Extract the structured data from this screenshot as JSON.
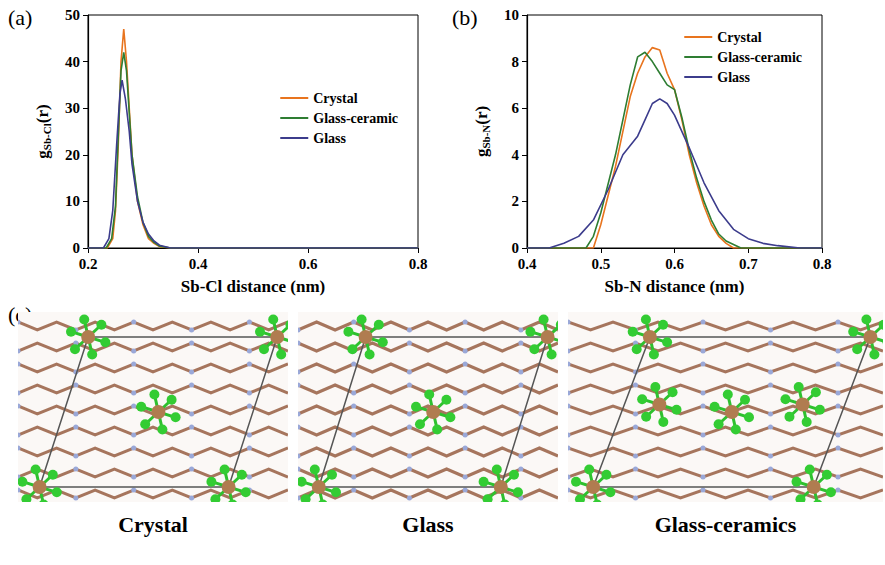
{
  "chart_data": [
    {
      "panel": "(a)",
      "type": "line",
      "xlabel": "Sb-Cl distance (nm)",
      "ylabel": [
        "g",
        "Sb-Cl",
        "(r)"
      ],
      "xlim": [
        0.2,
        0.8
      ],
      "xticks": [
        0.2,
        0.4,
        0.6,
        0.8
      ],
      "ylim": [
        0,
        50
      ],
      "yticks": [
        0,
        10,
        20,
        30,
        40,
        50
      ],
      "legend": "center right",
      "series": [
        {
          "name": "Crystal",
          "color": "#e8741e",
          "x": [
            0.2,
            0.235,
            0.245,
            0.25,
            0.255,
            0.26,
            0.265,
            0.27,
            0.275,
            0.28,
            0.29,
            0.3,
            0.31,
            0.32,
            0.33,
            0.35,
            0.8
          ],
          "values": [
            0,
            0,
            2,
            8,
            22,
            40,
            47,
            40,
            30,
            20,
            10,
            5,
            2,
            1,
            0.3,
            0,
            0
          ]
        },
        {
          "name": "Glass-ceramic",
          "color": "#2e7d32",
          "x": [
            0.2,
            0.233,
            0.243,
            0.25,
            0.255,
            0.26,
            0.265,
            0.27,
            0.275,
            0.28,
            0.29,
            0.3,
            0.31,
            0.32,
            0.33,
            0.35,
            0.8
          ],
          "values": [
            0,
            0,
            2,
            9,
            24,
            38,
            42,
            38,
            29,
            20,
            11,
            5.5,
            2.5,
            1.2,
            0.4,
            0,
            0
          ]
        },
        {
          "name": "Glass",
          "color": "#3c3c8c",
          "x": [
            0.2,
            0.228,
            0.238,
            0.245,
            0.252,
            0.258,
            0.262,
            0.268,
            0.275,
            0.28,
            0.29,
            0.3,
            0.31,
            0.32,
            0.33,
            0.35,
            0.8
          ],
          "values": [
            0,
            0,
            2,
            8,
            22,
            33,
            36,
            32,
            25,
            18,
            10,
            5.5,
            3,
            1.5,
            0.6,
            0,
            0
          ]
        }
      ]
    },
    {
      "panel": "(b)",
      "type": "line",
      "xlabel": "Sb-N distance (nm)",
      "ylabel": [
        "g",
        "Sb-N",
        "(r)"
      ],
      "xlim": [
        0.4,
        0.8
      ],
      "xticks": [
        0.4,
        0.5,
        0.6,
        0.7,
        0.8
      ],
      "ylim": [
        0,
        10
      ],
      "yticks": [
        0,
        2,
        4,
        6,
        8,
        10
      ],
      "legend": "upper right",
      "series": [
        {
          "name": "Crystal",
          "color": "#e8741e",
          "x": [
            0.4,
            0.49,
            0.5,
            0.52,
            0.54,
            0.55,
            0.56,
            0.57,
            0.58,
            0.59,
            0.6,
            0.61,
            0.62,
            0.63,
            0.64,
            0.65,
            0.66,
            0.67,
            0.68,
            0.8
          ],
          "values": [
            0,
            0,
            1,
            3.5,
            6.5,
            7.5,
            8.2,
            8.6,
            8.5,
            7.5,
            6.8,
            5.5,
            4,
            2.8,
            1.8,
            1,
            0.5,
            0.2,
            0,
            0
          ]
        },
        {
          "name": "Glass-ceramic",
          "color": "#2e7d32",
          "x": [
            0.4,
            0.48,
            0.49,
            0.5,
            0.52,
            0.54,
            0.55,
            0.56,
            0.57,
            0.58,
            0.59,
            0.6,
            0.61,
            0.62,
            0.63,
            0.64,
            0.65,
            0.66,
            0.67,
            0.69,
            0.8
          ],
          "values": [
            0,
            0,
            0.5,
            1.5,
            4,
            7,
            8.2,
            8.4,
            8.0,
            7.5,
            7.0,
            6.8,
            5.6,
            4.2,
            3,
            2,
            1.2,
            0.6,
            0.3,
            0,
            0
          ]
        },
        {
          "name": "Glass",
          "color": "#3c3c8c",
          "x": [
            0.4,
            0.43,
            0.45,
            0.47,
            0.49,
            0.51,
            0.53,
            0.55,
            0.56,
            0.57,
            0.58,
            0.59,
            0.6,
            0.62,
            0.64,
            0.66,
            0.68,
            0.7,
            0.72,
            0.74,
            0.77,
            0.8
          ],
          "values": [
            0,
            0,
            0.2,
            0.5,
            1.2,
            2.5,
            4,
            4.8,
            5.5,
            6.2,
            6.4,
            6.2,
            5.7,
            4.3,
            2.8,
            1.6,
            0.8,
            0.4,
            0.2,
            0.1,
            0,
            0
          ]
        }
      ]
    }
  ],
  "panel_c": {
    "panel": "(c)",
    "images": [
      {
        "caption": "Crystal"
      },
      {
        "caption": "Glass"
      },
      {
        "caption": "Glass-ceramics"
      }
    ]
  }
}
